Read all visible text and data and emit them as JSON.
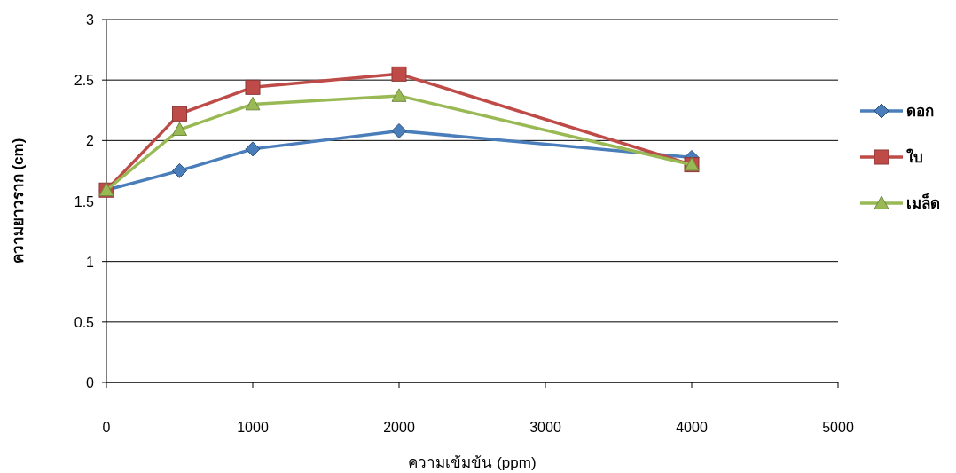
{
  "chart_data": {
    "type": "line",
    "xlabel": "ความเข้มข้น (ppm)",
    "ylabel": "ความยาวราก (cm)",
    "x": [
      0,
      500,
      1000,
      2000,
      4000
    ],
    "series": [
      {
        "name": "ดอก",
        "color": "#4a7ebb",
        "marker": "diamond",
        "values": [
          1.59,
          1.75,
          1.93,
          2.08,
          1.86
        ]
      },
      {
        "name": "ใบ",
        "color": "#be4b48",
        "marker": "square",
        "values": [
          1.59,
          2.22,
          2.44,
          2.55,
          1.8
        ]
      },
      {
        "name": "เมล็ด",
        "color": "#98b954",
        "marker": "triangle",
        "values": [
          1.59,
          2.09,
          2.3,
          2.37,
          1.8
        ]
      }
    ],
    "xlim": [
      0,
      5000
    ],
    "xticks": [
      0,
      1000,
      2000,
      3000,
      4000,
      5000
    ],
    "ylim": [
      0,
      3
    ],
    "yticks": [
      0,
      0.5,
      1,
      1.5,
      2,
      2.5,
      3
    ],
    "grid": "y",
    "legend": "right",
    "line_style": "solid"
  }
}
